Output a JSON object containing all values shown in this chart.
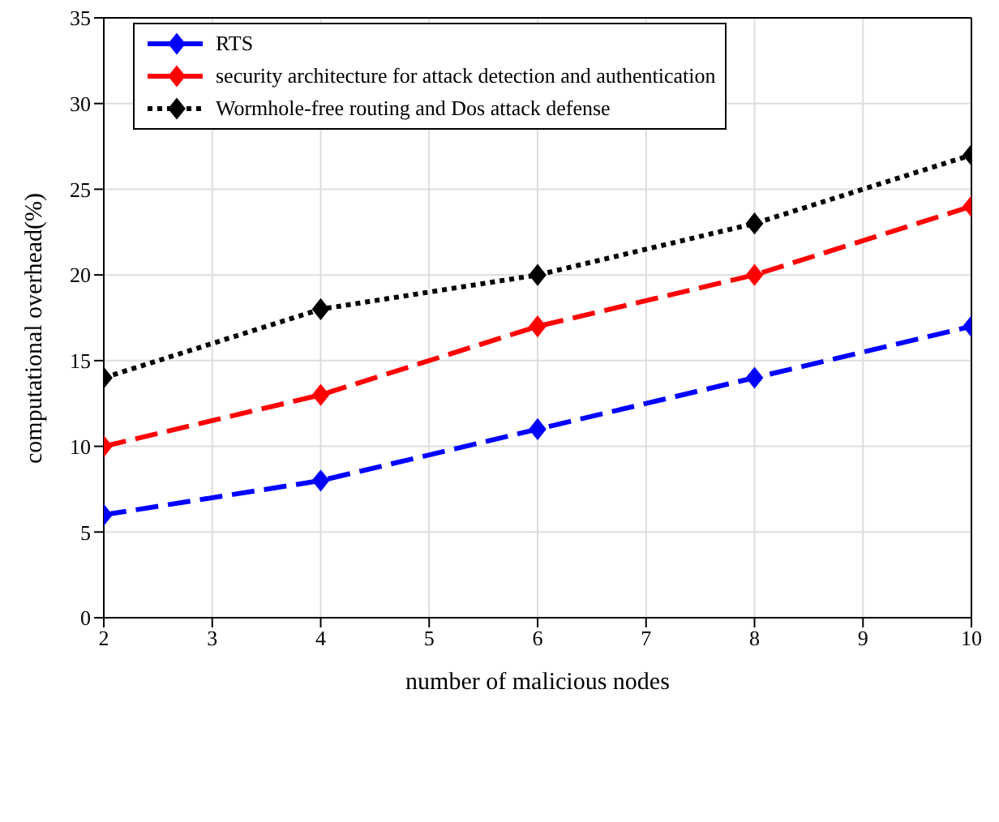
{
  "chart_data": {
    "type": "line",
    "xlabel": "number of malicious nodes",
    "ylabel": "computational overhead(%)",
    "x": [
      2,
      4,
      6,
      8,
      10
    ],
    "series": [
      {
        "name": "RTS",
        "color": "#0000ff",
        "values": [
          6,
          8,
          11,
          14,
          17
        ],
        "line_style": "dashed"
      },
      {
        "name": "security architecture for attack detection and authentication",
        "color": "#ff0000",
        "values": [
          10,
          13,
          17,
          20,
          24
        ],
        "line_style": "dashed"
      },
      {
        "name": "Wormhole-free routing and Dos attack defense",
        "color": "#000000",
        "values": [
          14,
          18,
          20,
          23,
          27
        ],
        "line_style": "dotted"
      }
    ],
    "xlim": [
      2,
      10
    ],
    "xticks": [
      2,
      3,
      4,
      5,
      6,
      7,
      8,
      9,
      10
    ],
    "ylim": [
      0,
      35
    ],
    "yticks": [
      0,
      5,
      10,
      15,
      20,
      25,
      30,
      35
    ],
    "grid": true,
    "legend": "top left",
    "marker": "diamond"
  }
}
